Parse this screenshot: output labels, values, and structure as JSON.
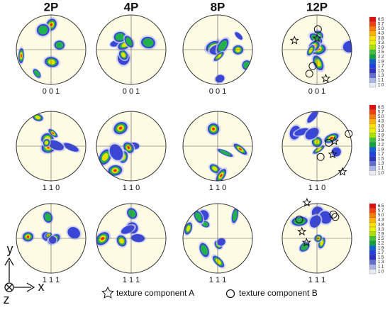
{
  "columns": [
    "2P",
    "4P",
    "8P",
    "12P"
  ],
  "pole_figure_rows": [
    [
      "0 0 1",
      "0 0 1",
      "0 0 1",
      "0 0 1"
    ],
    [
      "1 1 0",
      "1 1 0",
      "1 1 0",
      "1 1 0"
    ],
    [
      "1 1 1",
      "1 1 1",
      "1 1 1",
      "1 1 1"
    ]
  ],
  "colorbars": [
    [
      "6.5",
      "5.7",
      "5.0",
      "4.3",
      "3.8",
      "3.3",
      "2.9",
      "2.5",
      "2.2",
      "1.9",
      "1.7",
      "1.5",
      "1.3",
      "1.1",
      "1.0"
    ],
    [
      "6.5",
      "5.7",
      "5.0",
      "4.3",
      "3.8",
      "3.3",
      "2.9",
      "2.5",
      "2.2",
      "1.9",
      "1.7",
      "1.5",
      "1.3",
      "1.1",
      "1.0"
    ],
    [
      "6.5",
      "5.7",
      "5.0",
      "4.3",
      "3.8",
      "3.3",
      "2.9",
      "2.5",
      "2.2",
      "1.9",
      "1.7",
      "1.5",
      "1.3",
      "1.1",
      "1.0"
    ]
  ],
  "legend": [
    "texture component A",
    "texture component B"
  ],
  "axes": {
    "y": "y",
    "x": "x",
    "z": "z"
  }
}
